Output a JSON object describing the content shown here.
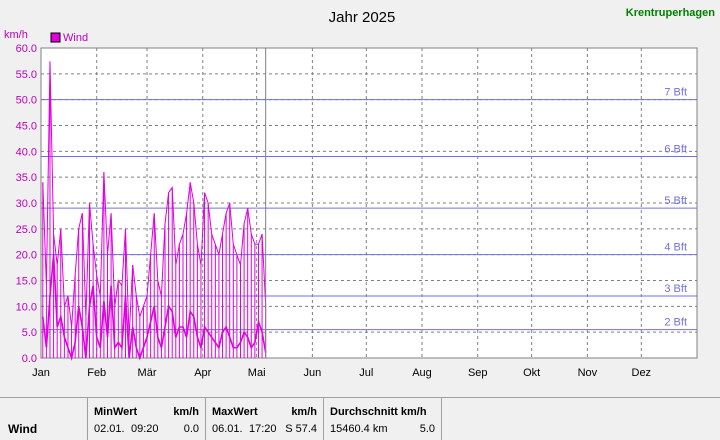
{
  "header": {
    "title": "Jahr 2025",
    "station": "Krentruperhagen"
  },
  "colors": {
    "series": "#e000e0",
    "beaufort": "#7070e0",
    "station": "#008000",
    "ylabel": "#c000c0"
  },
  "chart_data": {
    "type": "line",
    "title": "Jahr 2025",
    "ylabel": "km/h",
    "xlabel": "",
    "ylim": [
      0,
      60
    ],
    "y_ticks": [
      "0.0",
      "5.0",
      "10.0",
      "15.0",
      "20.0",
      "25.0",
      "30.0",
      "35.0",
      "40.0",
      "45.0",
      "50.0",
      "55.0",
      "60.0"
    ],
    "x_categories": [
      "Jan",
      "Feb",
      "Mär",
      "Apr",
      "Mai",
      "Jun",
      "Jul",
      "Aug",
      "Sep",
      "Okt",
      "Nov",
      "Dez"
    ],
    "legend": {
      "label": "Wind",
      "placement": "top-left"
    },
    "grid": true,
    "current_day": 125,
    "beaufort_lines": [
      {
        "label": "2 Bft",
        "value": 5.5
      },
      {
        "label": "3 Bft",
        "value": 12
      },
      {
        "label": "4 Bft",
        "value": 20
      },
      {
        "label": "5 Bft",
        "value": 29
      },
      {
        "label": "6 Bft",
        "value": 39
      },
      {
        "label": "7 Bft",
        "value": 50
      }
    ],
    "series": [
      {
        "name": "Wind",
        "x_day": [
          1,
          3,
          5,
          7,
          9,
          11,
          13,
          15,
          17,
          19,
          21,
          23,
          25,
          27,
          29,
          31,
          33,
          35,
          37,
          39,
          41,
          43,
          45,
          47,
          49,
          51,
          53,
          55,
          57,
          59,
          61,
          63,
          65,
          67,
          69,
          71,
          73,
          75,
          77,
          79,
          81,
          83,
          85,
          87,
          89,
          91,
          93,
          95,
          97,
          99,
          101,
          103,
          105,
          107,
          109,
          111,
          113,
          115,
          117,
          119,
          121,
          123,
          125
        ],
        "max_values": [
          34,
          14,
          57.4,
          24,
          18,
          25,
          10,
          12,
          6,
          16,
          25,
          28,
          8,
          30,
          22,
          16,
          12,
          36,
          20,
          28,
          10,
          15,
          14,
          25,
          4,
          18,
          12,
          8,
          10,
          12,
          20,
          28,
          15,
          12,
          26,
          32,
          33,
          18,
          22,
          24,
          28,
          34,
          30,
          22,
          18,
          32,
          30,
          24,
          22,
          20,
          24,
          28,
          30,
          22,
          20,
          18,
          26,
          29,
          24,
          22,
          22,
          24,
          10
        ],
        "min_values": [
          8,
          2,
          12,
          20,
          6,
          8,
          4,
          2,
          0,
          3,
          10,
          6,
          0,
          10,
          14,
          4,
          2,
          11,
          4,
          14,
          2,
          3,
          2,
          12,
          0,
          6,
          2,
          0,
          2,
          4,
          7,
          10,
          4,
          2,
          6,
          10,
          9,
          4,
          6,
          6,
          4,
          9,
          8,
          4,
          2,
          6,
          5,
          4,
          3,
          2,
          5,
          6,
          4,
          2,
          2,
          3,
          5,
          4,
          2,
          3,
          7,
          5,
          1
        ]
      }
    ]
  },
  "stats": {
    "row_label": "Wind",
    "min": {
      "title": "MinWert",
      "unit": "km/h",
      "date": "02.01.",
      "time": "09:20",
      "value": "0.0"
    },
    "max": {
      "title": "MaxWert",
      "unit": "km/h",
      "date": "06.01.",
      "time": "17:20",
      "value": "S 57.4"
    },
    "avg": {
      "title": "Durchschnitt km/h",
      "distance": "15460.4 km",
      "value": "5.0"
    }
  }
}
